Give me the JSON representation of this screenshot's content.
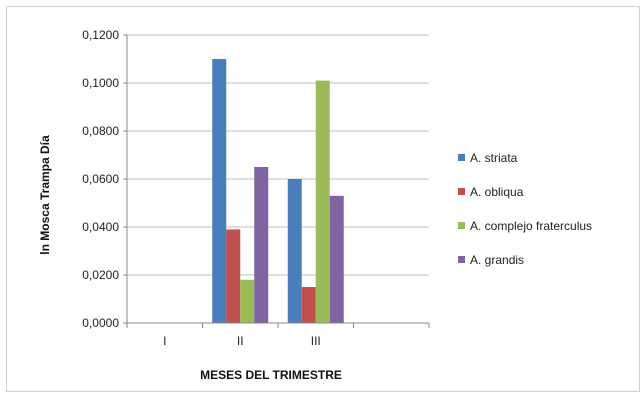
{
  "chart_data": {
    "type": "bar",
    "title": "",
    "xlabel": "MESES  DEL TRIMESTRE",
    "ylabel": "ln Mosca Trampa Día",
    "ylim": [
      0,
      0.12
    ],
    "y_ticks": [
      "0,0000",
      "0,0200",
      "0,0400",
      "0,0600",
      "0,0800",
      "0,1000",
      "0,1200"
    ],
    "grid": true,
    "legend_position": "right",
    "categories": [
      "I",
      "II",
      "III",
      ""
    ],
    "series": [
      {
        "name": "A. striata",
        "color": "#4A7EBB",
        "values": [
          0,
          0.11,
          0.06,
          0
        ]
      },
      {
        "name": "A. obliqua",
        "color": "#C0504D",
        "values": [
          0,
          0.039,
          0.015,
          0
        ]
      },
      {
        "name": "A. complejo fraterculus",
        "color": "#9BBB59",
        "values": [
          0,
          0.018,
          0.101,
          0
        ]
      },
      {
        "name": "A. grandis",
        "color": "#8064A2",
        "values": [
          0,
          0.065,
          0.053,
          0
        ]
      }
    ]
  }
}
